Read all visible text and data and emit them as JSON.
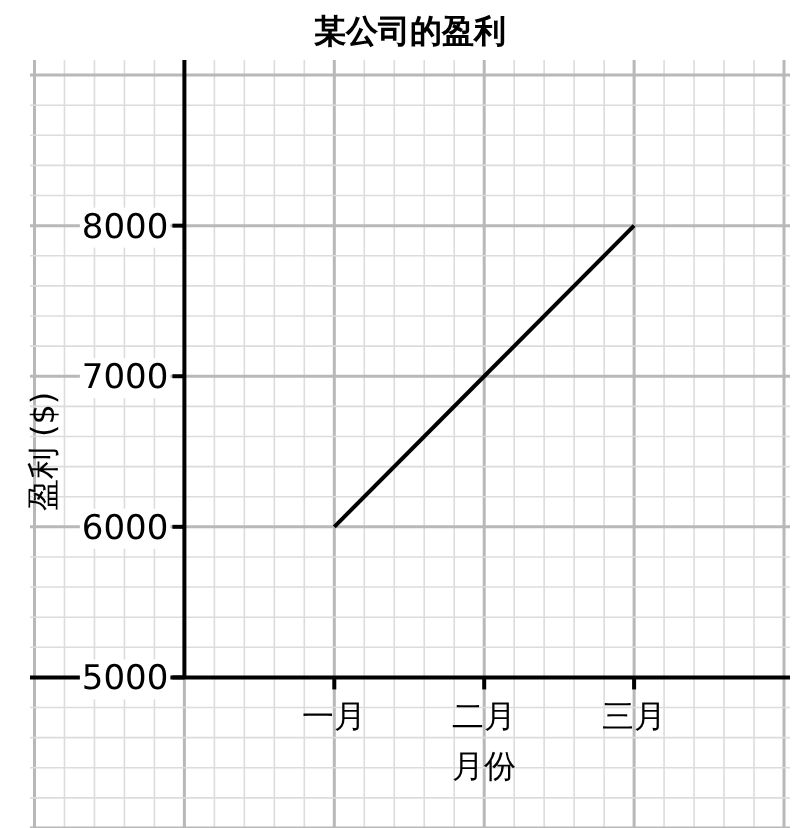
{
  "chart_data": {
    "type": "line",
    "title": "某公司的盈利",
    "xlabel": "月份",
    "ylabel": "盈利 ($)",
    "categories": [
      "一月",
      "二月",
      "三月"
    ],
    "series": [
      {
        "color": "#000000",
        "values": [
          6000,
          7000,
          8000
        ]
      }
    ],
    "ylim": [
      4000,
      9100
    ],
    "yticks": [
      5000,
      6000,
      7000,
      8000
    ],
    "grid": true,
    "marker": "none",
    "line_style": "solid"
  }
}
